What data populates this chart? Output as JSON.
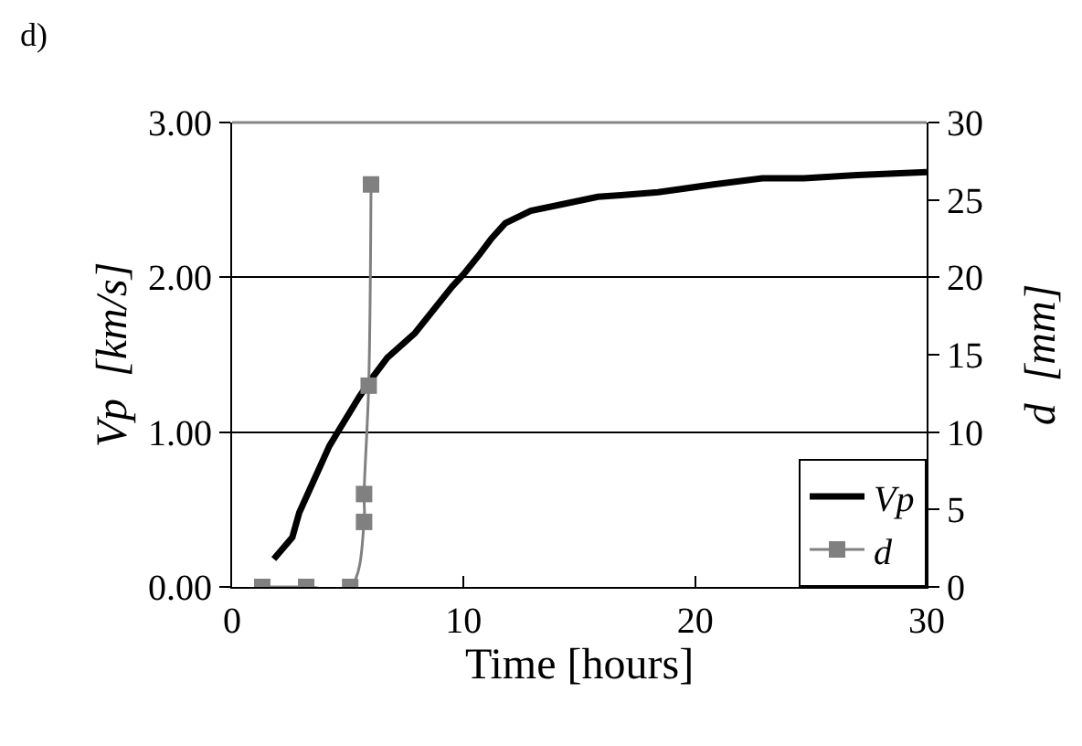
{
  "chart_data": {
    "type": "line",
    "xlabel": "Time [hours]",
    "ylabel": "Vp  [km/s]",
    "y2label": "d  [mm]",
    "annotations": [
      "d)"
    ],
    "xlim": [
      0,
      30
    ],
    "xticks": [
      0,
      10,
      20,
      30
    ],
    "ylim": [
      0,
      3
    ],
    "yticks": [
      {
        "value": 0,
        "label": "0.00"
      },
      {
        "value": 1,
        "label": "1.00"
      },
      {
        "value": 2,
        "label": "2.00"
      },
      {
        "value": 3,
        "label": "3.00"
      }
    ],
    "y2lim": [
      0,
      30
    ],
    "y2ticks": [
      0,
      5,
      10,
      15,
      20,
      25,
      30
    ],
    "grid": "y",
    "legend": "bottom right",
    "series": [
      {
        "name": "Vp",
        "color": "#000000",
        "marker": "none",
        "x": [
          1.8,
          2.6,
          2.9,
          4.2,
          4.6,
          5.5,
          6.05,
          6.7,
          7.9,
          9.5,
          10,
          10.7,
          11.2,
          11.8,
          12.9,
          14.2,
          15.8,
          16.8,
          18.4,
          20.8,
          22.9,
          24.7,
          27,
          30
        ],
        "values": [
          0.18,
          0.32,
          0.48,
          0.91,
          1.01,
          1.23,
          1.35,
          1.48,
          1.64,
          1.94,
          2.02,
          2.15,
          2.25,
          2.35,
          2.43,
          2.47,
          2.52,
          2.53,
          2.55,
          2.6,
          2.64,
          2.64,
          2.66,
          2.68
        ]
      },
      {
        "name": "d",
        "color": "#808080",
        "marker": "square",
        "axis": "y2",
        "x": [
          1.3,
          3.2,
          5.1,
          5.7,
          5.7,
          5.9,
          6.0
        ],
        "values": [
          0,
          0,
          0,
          4.2,
          6,
          13,
          26
        ]
      }
    ]
  }
}
